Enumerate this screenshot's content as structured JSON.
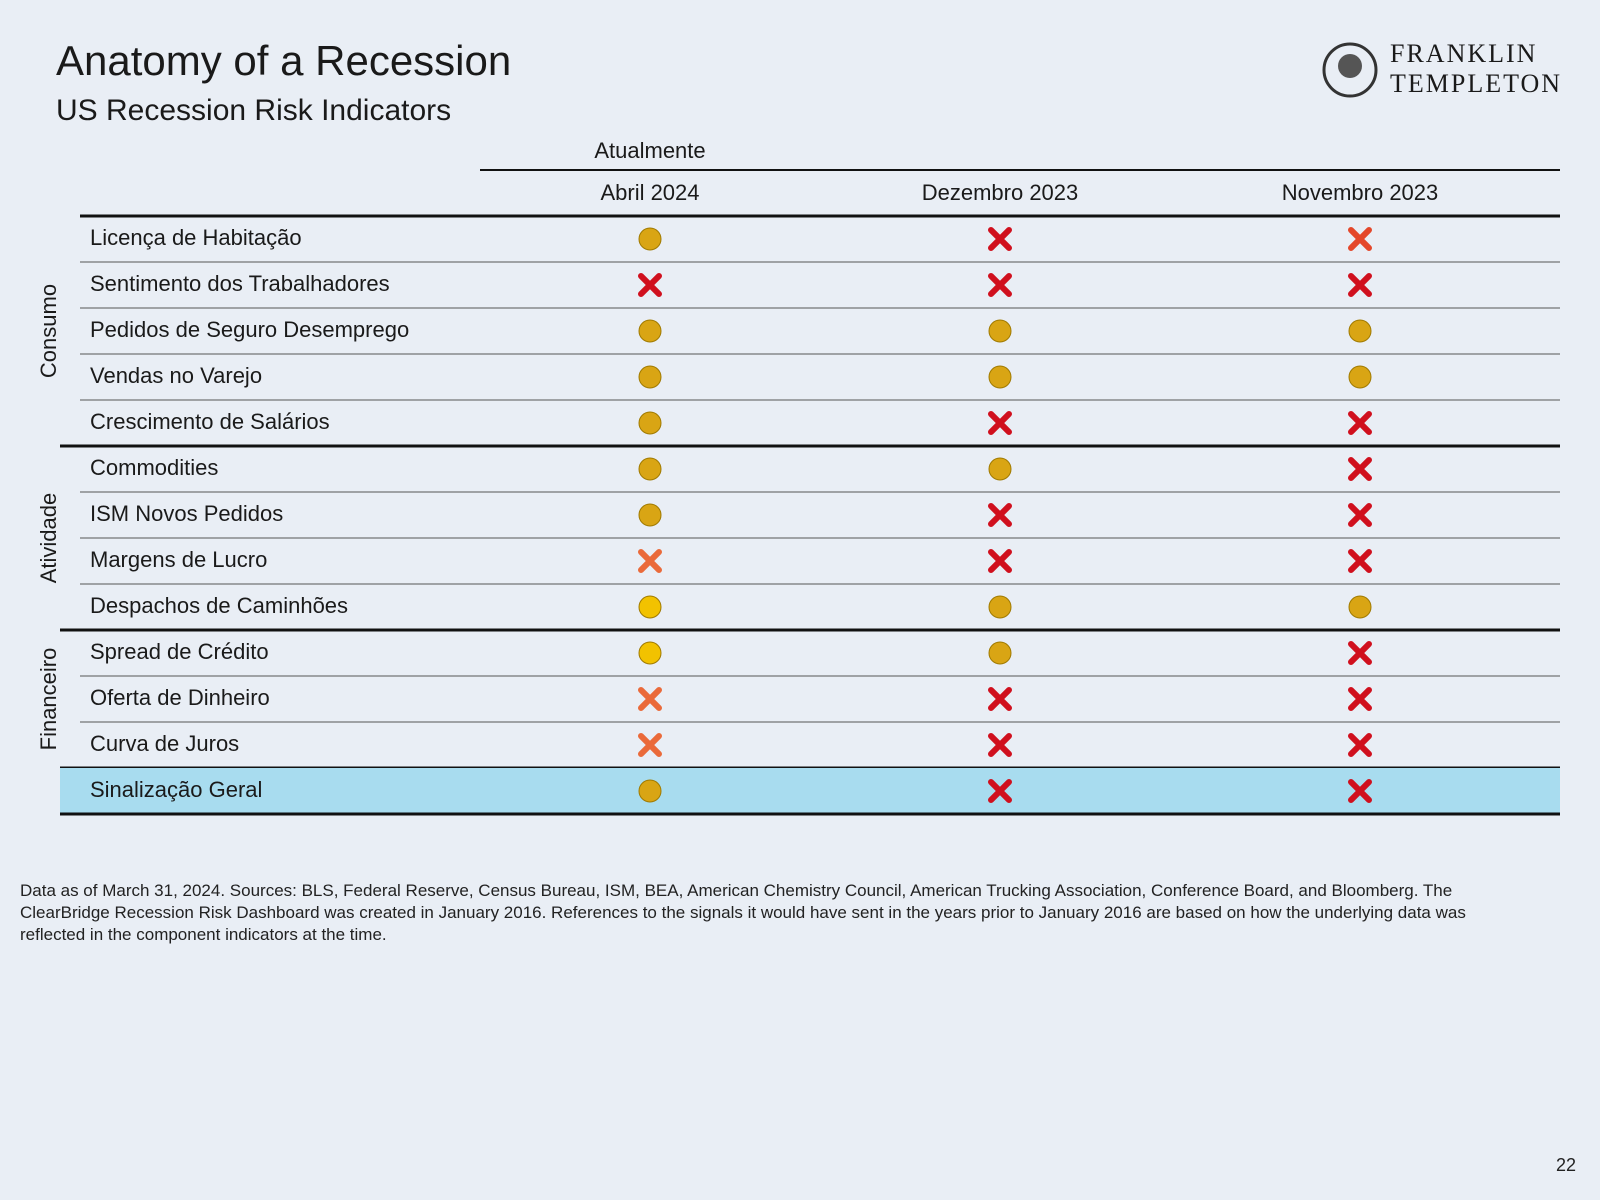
{
  "header": {
    "title": "Anatomy of a Recession",
    "subtitle": "US Recession Risk Indicators",
    "logo": [
      "FRANKLIN",
      "TEMPLETON"
    ]
  },
  "table": {
    "super_header": "Atualmente",
    "columns": [
      "Abril 2024",
      "Dezembro 2023",
      "Novembro 2023"
    ],
    "groups": [
      {
        "name": "Consumo",
        "rows": [
          {
            "label": "Licença de Habitação",
            "markers": [
              {
                "shape": "dot",
                "color": "#d9a514"
              },
              {
                "shape": "cross",
                "color": "#d0101e"
              },
              {
                "shape": "cross",
                "color": "#e4472a"
              }
            ]
          },
          {
            "label": "Sentimento dos Trabalhadores",
            "markers": [
              {
                "shape": "cross",
                "color": "#d0101e"
              },
              {
                "shape": "cross",
                "color": "#d0101e"
              },
              {
                "shape": "cross",
                "color": "#d0101e"
              }
            ]
          },
          {
            "label": "Pedidos de Seguro Desemprego",
            "markers": [
              {
                "shape": "dot",
                "color": "#d9a514"
              },
              {
                "shape": "dot",
                "color": "#d9a514"
              },
              {
                "shape": "dot",
                "color": "#d9a514"
              }
            ]
          },
          {
            "label": "Vendas no Varejo",
            "markers": [
              {
                "shape": "dot",
                "color": "#d9a514"
              },
              {
                "shape": "dot",
                "color": "#d9a514"
              },
              {
                "shape": "dot",
                "color": "#d9a514"
              }
            ]
          },
          {
            "label": "Crescimento de Salários",
            "markers": [
              {
                "shape": "dot",
                "color": "#d9a514"
              },
              {
                "shape": "cross",
                "color": "#d0101e"
              },
              {
                "shape": "cross",
                "color": "#d0101e"
              }
            ]
          }
        ]
      },
      {
        "name": "Atividade",
        "rows": [
          {
            "label": "Commodities",
            "markers": [
              {
                "shape": "dot",
                "color": "#d9a514"
              },
              {
                "shape": "dot",
                "color": "#d9a514"
              },
              {
                "shape": "cross",
                "color": "#d0101e"
              }
            ]
          },
          {
            "label": "ISM Novos Pedidos",
            "markers": [
              {
                "shape": "dot",
                "color": "#d9a514"
              },
              {
                "shape": "cross",
                "color": "#d0101e"
              },
              {
                "shape": "cross",
                "color": "#d0101e"
              }
            ]
          },
          {
            "label": "Margens de Lucro",
            "markers": [
              {
                "shape": "cross",
                "color": "#ea6a3a"
              },
              {
                "shape": "cross",
                "color": "#d0101e"
              },
              {
                "shape": "cross",
                "color": "#d0101e"
              }
            ]
          },
          {
            "label": "Despachos de Caminhões",
            "markers": [
              {
                "shape": "dot",
                "color": "#f2c200"
              },
              {
                "shape": "dot",
                "color": "#d9a514"
              },
              {
                "shape": "dot",
                "color": "#d9a514"
              }
            ]
          }
        ]
      },
      {
        "name": "Financeiro",
        "rows": [
          {
            "label": "Spread de Crédito",
            "markers": [
              {
                "shape": "dot",
                "color": "#f2c200"
              },
              {
                "shape": "dot",
                "color": "#d9a514"
              },
              {
                "shape": "cross",
                "color": "#d0101e"
              }
            ]
          },
          {
            "label": "Oferta de Dinheiro",
            "markers": [
              {
                "shape": "cross",
                "color": "#ea6a3a"
              },
              {
                "shape": "cross",
                "color": "#d0101e"
              },
              {
                "shape": "cross",
                "color": "#d0101e"
              }
            ]
          },
          {
            "label": "Curva de Juros",
            "markers": [
              {
                "shape": "cross",
                "color": "#ea6a3a"
              },
              {
                "shape": "cross",
                "color": "#d0101e"
              },
              {
                "shape": "cross",
                "color": "#d0101e"
              }
            ]
          }
        ]
      }
    ],
    "overall": {
      "label": "Sinalização Geral",
      "markers": [
        {
          "shape": "dot",
          "color": "#d9a514"
        },
        {
          "shape": "cross",
          "color": "#d0101e"
        },
        {
          "shape": "cross",
          "color": "#d0101e"
        }
      ]
    }
  },
  "footnote": "Data as of March 31, 2024. Sources: BLS, Federal Reserve, Census Bureau, ISM, BEA, American Chemistry Council, American Trucking Association, Conference Board, and Bloomberg. The ClearBridge Recession Risk Dashboard was created in January 2016. References to the signals it would have sent in the years prior to January 2016 are based on how the underlying data was reflected in the component indicators at the time.",
  "page_number": "22"
}
